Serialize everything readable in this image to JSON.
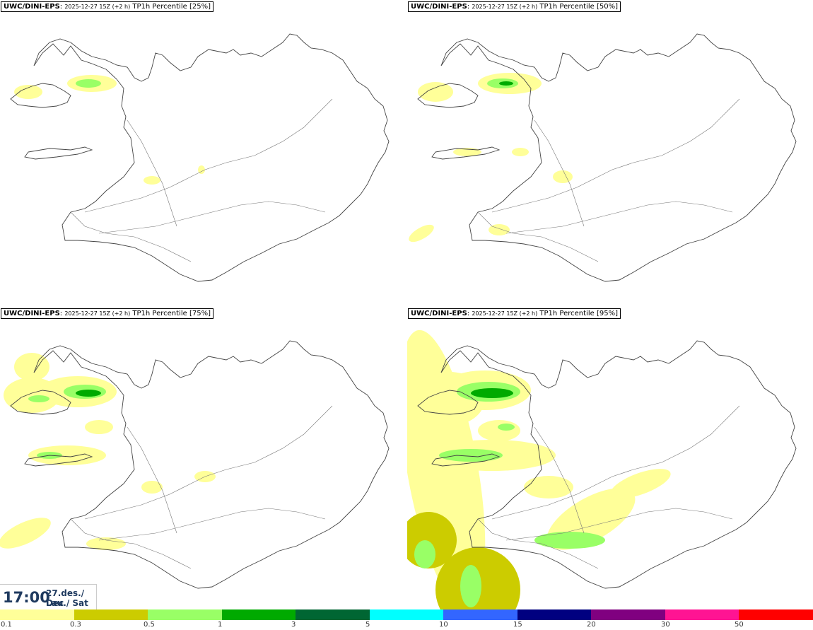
{
  "panels": [
    {
      "model": "UWC/DINI-EPS",
      "run": "2025-12-27 15Z (+2 h)",
      "product": "TP1h Percentile [25%]",
      "percentile": 25
    },
    {
      "model": "UWC/DINI-EPS",
      "run": "2025-12-27 15Z (+2 h)",
      "product": "TP1h Percentile [50%]",
      "percentile": 50
    },
    {
      "model": "UWC/DINI-EPS",
      "run": "2025-12-27 15Z (+2 h)",
      "product": "TP1h Percentile [75%]",
      "percentile": 75
    },
    {
      "model": "UWC/DINI-EPS",
      "run": "2025-12-27 15Z (+2 h)",
      "product": "TP1h Percentile [95%]",
      "percentile": 95
    }
  ],
  "valid_time": {
    "clock": "17:00",
    "date_line1": "27.des./ Dec",
    "date_line2": "Lau./ Sat"
  },
  "legend": {
    "labels": [
      "0.1",
      "0.3",
      "0.5",
      "1",
      "3",
      "5",
      "10",
      "15",
      "20",
      "30",
      "50"
    ],
    "colors": [
      "#ffff99",
      "#cccc00",
      "#99ff66",
      "#00aa00",
      "#006633",
      "#00ffff",
      "#3366ff",
      "#000080",
      "#800080",
      "#ff1493",
      "#ff0000"
    ]
  }
}
